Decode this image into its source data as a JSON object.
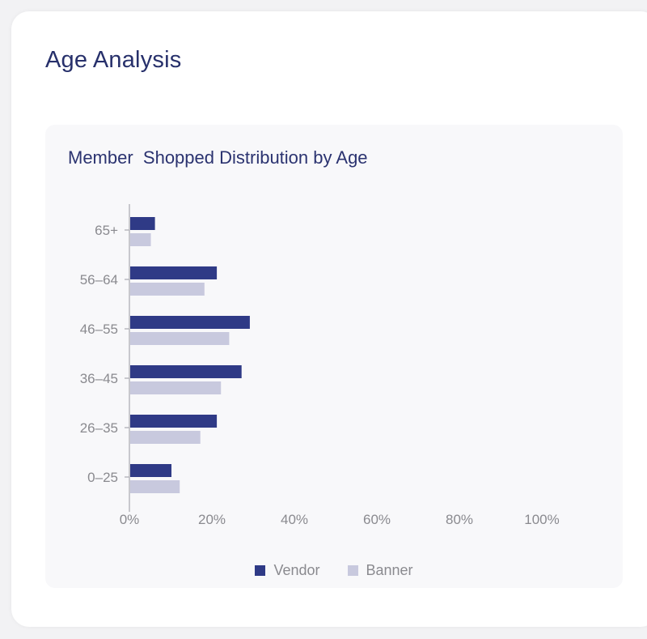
{
  "card": {
    "title": "Age Analysis"
  },
  "chart_data": {
    "type": "bar",
    "orientation": "horizontal",
    "title": "Member  Shopped Distribution by Age",
    "categories": [
      "65+",
      "56–64",
      "46–55",
      "36–45",
      "26–35",
      "0–25"
    ],
    "series": [
      {
        "name": "Vendor",
        "color": "#2f3a86",
        "values": [
          6,
          21,
          29,
          27,
          21,
          10
        ]
      },
      {
        "name": "Banner",
        "color": "#c8c9de",
        "values": [
          5,
          18,
          24,
          22,
          17,
          12
        ]
      }
    ],
    "xlim": [
      0,
      100
    ],
    "xticks": [
      "0%",
      "20%",
      "40%",
      "60%",
      "80%",
      "100%"
    ],
    "grid": false,
    "legend_position": "bottom-center"
  }
}
